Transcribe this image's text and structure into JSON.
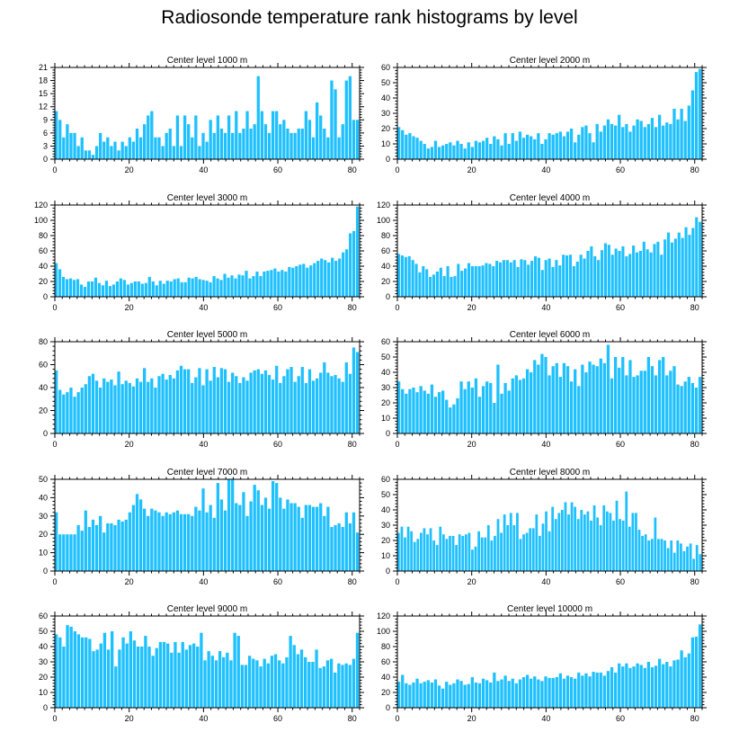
{
  "title": "Radiosonde temperature rank histograms by level",
  "bar_color": "#1ec0ff",
  "chart_data": [
    {
      "type": "bar",
      "title": "Center level 1000 m",
      "xlim": [
        0,
        82
      ],
      "ylim": [
        0,
        21
      ],
      "xticks": [
        0,
        20,
        40,
        60,
        80
      ],
      "yticks": [
        0,
        3,
        6,
        9,
        12,
        15,
        18,
        21
      ],
      "values": [
        11,
        9,
        5,
        8,
        6,
        6,
        3,
        5,
        2,
        2,
        1,
        3,
        6,
        4,
        5,
        3,
        4,
        2,
        4,
        3,
        5,
        4,
        7,
        5,
        8,
        10,
        11,
        5,
        5,
        3,
        6,
        7,
        3,
        10,
        3,
        10,
        8,
        5,
        10,
        3,
        6,
        4,
        9,
        6,
        10,
        7,
        6,
        10,
        6,
        11,
        6,
        7,
        11,
        7,
        8,
        19,
        11,
        8,
        6,
        11,
        11,
        8,
        9,
        7,
        6,
        6,
        7,
        7,
        11,
        9,
        5,
        13,
        10,
        7,
        5,
        18,
        16,
        5,
        8,
        18,
        19,
        9,
        9
      ]
    },
    {
      "type": "bar",
      "title": "Center level 2000 m",
      "xlim": [
        0,
        82
      ],
      "ylim": [
        0,
        60
      ],
      "xticks": [
        0,
        20,
        40,
        60,
        80
      ],
      "yticks": [
        0,
        10,
        20,
        30,
        40,
        50,
        60
      ],
      "values": [
        21,
        19,
        16,
        17,
        15,
        14,
        12,
        10,
        7,
        8,
        12,
        8,
        9,
        10,
        11,
        9,
        12,
        10,
        7,
        11,
        8,
        12,
        11,
        12,
        14,
        10,
        15,
        13,
        9,
        17,
        10,
        17,
        12,
        18,
        14,
        16,
        15,
        13,
        17,
        10,
        13,
        17,
        16,
        17,
        18,
        15,
        18,
        20,
        11,
        16,
        21,
        22,
        17,
        11,
        23,
        18,
        22,
        26,
        23,
        22,
        29,
        21,
        23,
        18,
        22,
        26,
        25,
        21,
        23,
        27,
        21,
        29,
        22,
        24,
        23,
        33,
        26,
        33,
        25,
        35,
        45,
        57,
        59
      ]
    },
    {
      "type": "bar",
      "title": "Center level 3000 m",
      "xlim": [
        0,
        82
      ],
      "ylim": [
        0,
        120
      ],
      "xticks": [
        0,
        20,
        40,
        60,
        80
      ],
      "yticks": [
        0,
        20,
        40,
        60,
        80,
        100,
        120
      ],
      "values": [
        44,
        36,
        26,
        23,
        24,
        22,
        23,
        16,
        13,
        20,
        20,
        25,
        18,
        15,
        21,
        14,
        16,
        20,
        24,
        22,
        16,
        18,
        20,
        20,
        17,
        18,
        26,
        20,
        15,
        21,
        17,
        21,
        20,
        23,
        24,
        19,
        19,
        25,
        24,
        26,
        23,
        22,
        21,
        19,
        27,
        24,
        22,
        30,
        25,
        28,
        24,
        29,
        28,
        34,
        24,
        27,
        33,
        27,
        33,
        34,
        35,
        37,
        33,
        35,
        33,
        39,
        38,
        40,
        42,
        43,
        38,
        41,
        44,
        47,
        50,
        48,
        45,
        51,
        47,
        50,
        58,
        62,
        83,
        86,
        118
      ]
    },
    {
      "type": "bar",
      "title": "Center level 4000 m",
      "xlim": [
        0,
        82
      ],
      "ylim": [
        0,
        120
      ],
      "xticks": [
        0,
        20,
        40,
        60,
        80
      ],
      "yticks": [
        0,
        20,
        40,
        60,
        80,
        100,
        120
      ],
      "values": [
        56,
        54,
        52,
        53,
        48,
        43,
        32,
        40,
        36,
        26,
        29,
        33,
        38,
        27,
        40,
        26,
        27,
        43,
        34,
        37,
        44,
        40,
        40,
        40,
        41,
        44,
        43,
        40,
        47,
        45,
        48,
        48,
        45,
        48,
        39,
        49,
        48,
        42,
        47,
        53,
        51,
        35,
        48,
        50,
        39,
        48,
        41,
        55,
        54,
        55,
        40,
        46,
        55,
        50,
        60,
        66,
        53,
        48,
        61,
        70,
        68,
        55,
        63,
        60,
        66,
        53,
        56,
        67,
        58,
        60,
        72,
        62,
        58,
        69,
        72,
        55,
        75,
        84,
        71,
        76,
        84,
        77,
        91,
        81,
        90,
        104,
        98
      ]
    },
    {
      "type": "bar",
      "title": "Center level 5000 m",
      "xlim": [
        0,
        82
      ],
      "ylim": [
        0,
        80
      ],
      "xticks": [
        0,
        20,
        40,
        60,
        80
      ],
      "yticks": [
        0,
        20,
        40,
        60,
        80
      ],
      "values": [
        55,
        38,
        34,
        36,
        40,
        32,
        36,
        40,
        43,
        50,
        52,
        46,
        40,
        48,
        45,
        47,
        42,
        54,
        43,
        46,
        44,
        41,
        48,
        45,
        57,
        45,
        48,
        40,
        50,
        52,
        47,
        51,
        48,
        55,
        59,
        56,
        56,
        44,
        49,
        57,
        42,
        56,
        46,
        58,
        49,
        57,
        56,
        45,
        53,
        50,
        44,
        49,
        46,
        53,
        55,
        56,
        52,
        55,
        51,
        47,
        59,
        44,
        50,
        56,
        58,
        45,
        50,
        58,
        44,
        56,
        46,
        48,
        53,
        62,
        53,
        50,
        51,
        48,
        45,
        62,
        52,
        75,
        71
      ]
    },
    {
      "type": "bar",
      "title": "Center level 6000 m",
      "xlim": [
        0,
        82
      ],
      "ylim": [
        0,
        60
      ],
      "xticks": [
        0,
        20,
        40,
        60,
        80
      ],
      "yticks": [
        0,
        10,
        20,
        30,
        40,
        50,
        60
      ],
      "values": [
        34,
        29,
        26,
        29,
        30,
        27,
        31,
        28,
        26,
        32,
        24,
        27,
        28,
        22,
        17,
        19,
        23,
        34,
        29,
        34,
        30,
        36,
        24,
        31,
        34,
        33,
        20,
        45,
        26,
        33,
        28,
        36,
        38,
        35,
        36,
        42,
        40,
        48,
        45,
        52,
        50,
        38,
        44,
        46,
        37,
        46,
        44,
        34,
        42,
        31,
        45,
        40,
        47,
        45,
        44,
        49,
        46,
        58,
        36,
        50,
        43,
        50,
        38,
        48,
        37,
        38,
        41,
        41,
        50,
        44,
        38,
        48,
        50,
        38,
        41,
        44,
        32,
        31,
        34,
        37,
        33,
        30,
        37
      ]
    },
    {
      "type": "bar",
      "title": "Center level 7000 m",
      "xlim": [
        0,
        82
      ],
      "ylim": [
        0,
        50
      ],
      "xticks": [
        0,
        20,
        40,
        60,
        80
      ],
      "yticks": [
        0,
        10,
        20,
        30,
        40,
        50
      ],
      "values": [
        32,
        20,
        20,
        20,
        20,
        20,
        25,
        22,
        33,
        24,
        28,
        25,
        30,
        21,
        26,
        26,
        25,
        28,
        27,
        28,
        32,
        36,
        42,
        39,
        34,
        30,
        34,
        33,
        32,
        30,
        32,
        31,
        32,
        33,
        31,
        31,
        31,
        30,
        35,
        33,
        45,
        32,
        36,
        29,
        48,
        39,
        33,
        50,
        50,
        37,
        36,
        43,
        30,
        38,
        47,
        44,
        36,
        40,
        34,
        49,
        48,
        40,
        34,
        39,
        37,
        37,
        35,
        29,
        36,
        36,
        35,
        35,
        37,
        30,
        35,
        24,
        25,
        26,
        24,
        32,
        26,
        32,
        21
      ]
    },
    {
      "type": "bar",
      "title": "Center level 8000 m",
      "xlim": [
        0,
        82
      ],
      "ylim": [
        0,
        60
      ],
      "xticks": [
        0,
        20,
        40,
        60,
        80
      ],
      "yticks": [
        0,
        10,
        20,
        30,
        40,
        50,
        60
      ],
      "values": [
        25,
        29,
        22,
        29,
        26,
        19,
        21,
        25,
        28,
        24,
        28,
        20,
        17,
        29,
        24,
        21,
        23,
        23,
        17,
        24,
        23,
        24,
        25,
        14,
        16,
        26,
        22,
        22,
        30,
        20,
        23,
        34,
        25,
        37,
        30,
        38,
        30,
        38,
        21,
        24,
        25,
        28,
        28,
        37,
        23,
        31,
        39,
        26,
        42,
        34,
        38,
        40,
        45,
        37,
        45,
        42,
        34,
        40,
        37,
        39,
        33,
        43,
        35,
        30,
        43,
        39,
        38,
        33,
        46,
        34,
        33,
        52,
        29,
        38,
        38,
        27,
        23,
        24,
        20,
        21,
        35,
        21,
        21,
        20,
        15,
        20,
        12,
        20,
        18,
        13,
        16,
        18,
        8,
        17,
        11
      ]
    },
    {
      "type": "bar",
      "title": "Center level 9000 m",
      "xlim": [
        0,
        82
      ],
      "ylim": [
        0,
        60
      ],
      "xticks": [
        0,
        20,
        40,
        60,
        80
      ],
      "yticks": [
        0,
        10,
        20,
        30,
        40,
        50,
        60
      ],
      "values": [
        48,
        46,
        40,
        54,
        53,
        50,
        48,
        46,
        46,
        45,
        37,
        38,
        42,
        49,
        38,
        50,
        27,
        38,
        46,
        42,
        50,
        44,
        40,
        40,
        47,
        40,
        34,
        39,
        43,
        43,
        42,
        36,
        43,
        36,
        43,
        38,
        41,
        42,
        40,
        49,
        31,
        37,
        34,
        31,
        37,
        33,
        36,
        31,
        49,
        47,
        28,
        28,
        34,
        32,
        31,
        27,
        32,
        29,
        34,
        35,
        31,
        29,
        33,
        47,
        41,
        35,
        38,
        33,
        30,
        30,
        38,
        26,
        27,
        31,
        32,
        23,
        29,
        28,
        29,
        28,
        32,
        49
      ]
    },
    {
      "type": "bar",
      "title": "Center level 10000 m",
      "xlim": [
        0,
        82
      ],
      "ylim": [
        0,
        120
      ],
      "xticks": [
        0,
        20,
        40,
        60,
        80
      ],
      "yticks": [
        0,
        20,
        40,
        60,
        80,
        100,
        120
      ],
      "values": [
        34,
        43,
        32,
        30,
        33,
        38,
        32,
        34,
        36,
        33,
        37,
        29,
        25,
        34,
        30,
        32,
        37,
        35,
        30,
        31,
        40,
        33,
        32,
        38,
        36,
        33,
        46,
        35,
        37,
        42,
        35,
        38,
        32,
        37,
        40,
        43,
        38,
        41,
        37,
        35,
        41,
        39,
        39,
        40,
        45,
        38,
        42,
        40,
        38,
        46,
        42,
        45,
        41,
        47,
        46,
        46,
        42,
        48,
        53,
        46,
        58,
        54,
        58,
        52,
        54,
        58,
        56,
        52,
        60,
        53,
        55,
        64,
        57,
        60,
        54,
        62,
        63,
        75,
        66,
        71,
        92,
        93,
        109
      ]
    }
  ]
}
